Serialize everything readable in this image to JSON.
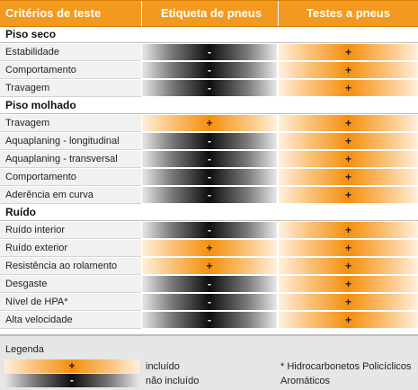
{
  "header": {
    "col1": "Critérios de teste",
    "col2": "Etiqueta de pneus",
    "col3": "Testes a pneus"
  },
  "sections": [
    {
      "title": "Piso seco",
      "rows": [
        {
          "label": "Estabilidade",
          "label_col": "-",
          "test_col": "+"
        },
        {
          "label": "Comportamento",
          "label_col": "-",
          "test_col": "+"
        },
        {
          "label": "Travagem",
          "label_col": "-",
          "test_col": "+"
        }
      ]
    },
    {
      "title": "Piso molhado",
      "rows": [
        {
          "label": "Travagem",
          "label_col": "+",
          "test_col": "+"
        },
        {
          "label": "Aquaplaning - longitudinal",
          "label_col": "-",
          "test_col": "+"
        },
        {
          "label": "Aquaplaning - transversal",
          "label_col": "-",
          "test_col": "+"
        },
        {
          "label": "Comportamento",
          "label_col": "-",
          "test_col": "+"
        },
        {
          "label": "Aderência em curva",
          "label_col": "-",
          "test_col": "+"
        }
      ]
    },
    {
      "title": "Ruído",
      "rows": [
        {
          "label": "Ruído interior",
          "label_col": "-",
          "test_col": "+"
        },
        {
          "label": "Ruído exterior",
          "label_col": "+",
          "test_col": "+"
        },
        {
          "label": "Resistência ao rolamento",
          "label_col": "+",
          "test_col": "+"
        },
        {
          "label": "Desgaste",
          "label_col": "-",
          "test_col": "+"
        },
        {
          "label": "Nível de HPA*",
          "label_col": "-",
          "test_col": "+"
        },
        {
          "label": "Alta velocidade",
          "label_col": "-",
          "test_col": "+"
        }
      ]
    }
  ],
  "legend": {
    "title": "Legenda",
    "included_symbol": "+",
    "included_label": "incluído",
    "excluded_symbol": "-",
    "excluded_label": "não incluído",
    "footnote_line1": "* Hidrocarbonetos Policíclicos",
    "footnote_line2": "Aromáticos"
  },
  "colors": {
    "header_bg": "#f29a1f",
    "included": "#f5900f",
    "excluded": "#0e0e0e"
  }
}
